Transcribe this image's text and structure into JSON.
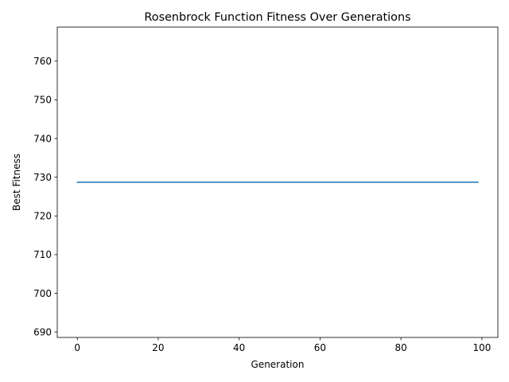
{
  "chart_data": {
    "type": "line",
    "title": "Rosenbrock Function Fitness Over Generations",
    "xlabel": "Generation",
    "ylabel": "Best Fitness",
    "xlim": [
      -4.95,
      103.95
    ],
    "ylim": [
      688.6,
      768.8
    ],
    "xticks": [
      0,
      20,
      40,
      60,
      80,
      100
    ],
    "yticks": [
      690,
      700,
      710,
      720,
      730,
      740,
      750,
      760
    ],
    "grid": false,
    "legend": "none",
    "series": [
      {
        "color": "#1f77b4",
        "x": [
          0,
          99
        ],
        "y": [
          728.7,
          728.7
        ]
      }
    ]
  }
}
